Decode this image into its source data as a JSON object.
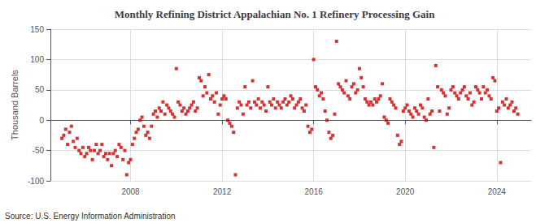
{
  "chart_data": {
    "type": "scatter",
    "title": "Monthly Refining District Appalachian No. 1 Refinery Processing Gain",
    "y_label": "Thousand Barrels",
    "annotations": [
      "Source: U.S. Energy Information Administration"
    ],
    "color": "#cc0000",
    "marker": "square",
    "grid": true,
    "xlim": [
      2004.5,
      2025.5
    ],
    "xticks": [
      2008,
      2012,
      2016,
      2020,
      2024
    ],
    "ylim": [
      -100,
      150
    ],
    "yticks": [
      -100,
      -50,
      0,
      50,
      100,
      150
    ],
    "x": [
      2005.0,
      2005.083,
      2005.167,
      2005.25,
      2005.333,
      2005.417,
      2005.5,
      2005.583,
      2005.667,
      2005.75,
      2005.833,
      2005.917,
      2006.0,
      2006.083,
      2006.167,
      2006.25,
      2006.333,
      2006.417,
      2006.5,
      2006.583,
      2006.667,
      2006.75,
      2006.833,
      2006.917,
      2007.0,
      2007.083,
      2007.167,
      2007.25,
      2007.333,
      2007.417,
      2007.5,
      2007.583,
      2007.667,
      2007.75,
      2007.833,
      2007.917,
      2008.0,
      2008.083,
      2008.167,
      2008.25,
      2008.333,
      2008.417,
      2008.5,
      2008.583,
      2008.667,
      2008.75,
      2008.833,
      2008.917,
      2009.0,
      2009.083,
      2009.167,
      2009.25,
      2009.333,
      2009.417,
      2009.5,
      2009.583,
      2009.667,
      2009.75,
      2009.833,
      2009.917,
      2010.0,
      2010.083,
      2010.167,
      2010.25,
      2010.333,
      2010.417,
      2010.5,
      2010.583,
      2010.667,
      2010.75,
      2010.833,
      2010.917,
      2011.0,
      2011.083,
      2011.167,
      2011.25,
      2011.333,
      2011.417,
      2011.5,
      2011.583,
      2011.667,
      2011.75,
      2011.833,
      2011.917,
      2012.0,
      2012.083,
      2012.167,
      2012.25,
      2012.333,
      2012.417,
      2012.5,
      2012.583,
      2012.667,
      2012.75,
      2012.833,
      2012.917,
      2013.0,
      2013.083,
      2013.167,
      2013.25,
      2013.333,
      2013.417,
      2013.5,
      2013.583,
      2013.667,
      2013.75,
      2013.833,
      2013.917,
      2014.0,
      2014.083,
      2014.167,
      2014.25,
      2014.333,
      2014.417,
      2014.5,
      2014.583,
      2014.667,
      2014.75,
      2014.833,
      2014.917,
      2015.0,
      2015.083,
      2015.167,
      2015.25,
      2015.333,
      2015.417,
      2015.5,
      2015.583,
      2015.667,
      2015.75,
      2015.833,
      2015.917,
      2016.0,
      2016.083,
      2016.167,
      2016.25,
      2016.333,
      2016.417,
      2016.5,
      2016.583,
      2016.667,
      2016.75,
      2016.833,
      2016.917,
      2017.0,
      2017.083,
      2017.167,
      2017.25,
      2017.333,
      2017.417,
      2017.5,
      2017.583,
      2017.667,
      2017.75,
      2017.833,
      2017.917,
      2018.0,
      2018.083,
      2018.167,
      2018.25,
      2018.333,
      2018.417,
      2018.5,
      2018.583,
      2018.667,
      2018.75,
      2018.833,
      2018.917,
      2019.0,
      2019.083,
      2019.167,
      2019.25,
      2019.333,
      2019.417,
      2019.5,
      2019.583,
      2019.667,
      2019.75,
      2019.833,
      2019.917,
      2020.0,
      2020.083,
      2020.167,
      2020.25,
      2020.333,
      2020.417,
      2020.5,
      2020.583,
      2020.667,
      2020.75,
      2020.833,
      2020.917,
      2021.0,
      2021.083,
      2021.167,
      2021.25,
      2021.333,
      2021.417,
      2021.5,
      2021.583,
      2021.667,
      2021.75,
      2021.833,
      2021.917,
      2022.0,
      2022.083,
      2022.167,
      2022.25,
      2022.333,
      2022.417,
      2022.5,
      2022.583,
      2022.667,
      2022.75,
      2022.833,
      2022.917,
      2023.0,
      2023.083,
      2023.167,
      2023.25,
      2023.333,
      2023.417,
      2023.5,
      2023.583,
      2023.667,
      2023.75,
      2023.833,
      2023.917,
      2024.0,
      2024.083,
      2024.167,
      2024.25,
      2024.333,
      2024.417,
      2024.5,
      2024.583,
      2024.667,
      2024.75,
      2024.833,
      2024.917
    ],
    "values": [
      -30,
      -25,
      -15,
      -40,
      -20,
      -10,
      -35,
      -45,
      -30,
      -50,
      -55,
      -45,
      -60,
      -55,
      -45,
      -50,
      -65,
      -50,
      -40,
      -55,
      -50,
      -40,
      -60,
      -55,
      -65,
      -55,
      -75,
      -55,
      -50,
      -60,
      -40,
      -45,
      -65,
      -50,
      -90,
      -70,
      -65,
      -40,
      -30,
      -20,
      -15,
      0,
      5,
      -10,
      -25,
      -20,
      -30,
      -10,
      10,
      15,
      5,
      20,
      15,
      30,
      10,
      25,
      20,
      15,
      10,
      5,
      85,
      30,
      25,
      15,
      20,
      10,
      15,
      20,
      25,
      30,
      15,
      20,
      70,
      65,
      40,
      55,
      45,
      75,
      35,
      40,
      30,
      45,
      10,
      25,
      35,
      40,
      35,
      0,
      -5,
      -10,
      -20,
      -90,
      20,
      30,
      25,
      10,
      55,
      25,
      30,
      20,
      65,
      30,
      25,
      35,
      20,
      30,
      25,
      15,
      55,
      30,
      25,
      35,
      20,
      30,
      25,
      20,
      30,
      35,
      25,
      30,
      40,
      35,
      20,
      25,
      30,
      35,
      20,
      15,
      25,
      -10,
      -20,
      -15,
      100,
      55,
      50,
      40,
      45,
      35,
      15,
      0,
      -20,
      -30,
      -25,
      10,
      130,
      60,
      55,
      50,
      45,
      65,
      40,
      35,
      55,
      60,
      45,
      50,
      85,
      70,
      55,
      35,
      30,
      25,
      30,
      25,
      35,
      30,
      35,
      40,
      60,
      5,
      0,
      -5,
      35,
      30,
      25,
      20,
      -25,
      -40,
      -35,
      15,
      20,
      25,
      15,
      10,
      5,
      20,
      15,
      10,
      25,
      20,
      5,
      0,
      35,
      10,
      15,
      -45,
      90,
      55,
      15,
      50,
      45,
      40,
      10,
      20,
      50,
      55,
      45,
      40,
      35,
      45,
      50,
      55,
      40,
      35,
      45,
      25,
      30,
      55,
      50,
      45,
      35,
      55,
      45,
      50,
      40,
      35,
      70,
      65,
      15,
      20,
      -70,
      30,
      25,
      35,
      20,
      25,
      30,
      15,
      20,
      10
    ]
  }
}
